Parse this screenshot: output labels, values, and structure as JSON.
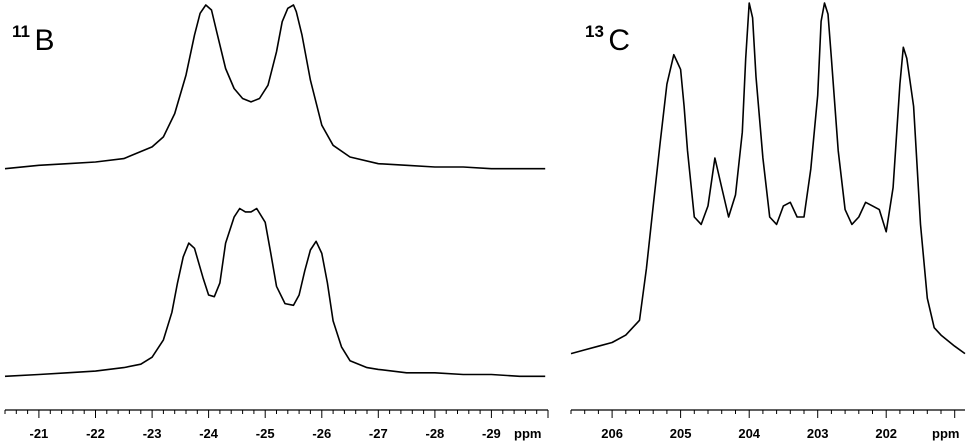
{
  "chart_data": [
    {
      "type": "line",
      "panel": "left",
      "nucleus": {
        "mass": "11",
        "element": "B"
      },
      "xlabel": "ppm",
      "xlim": [
        -20.4,
        -30.0
      ],
      "ticks": [
        "-21",
        "-22",
        "-23",
        "-24",
        "-25",
        "-26",
        "-27",
        "-28",
        "-29"
      ],
      "grid": false,
      "legend": "none",
      "series": [
        {
          "x": [
            -20.4,
            -21.0,
            -21.5,
            -22.0,
            -22.5,
            -23.0,
            -23.2,
            -23.4,
            -23.6,
            -23.75,
            -23.85,
            -23.95,
            -24.05,
            -24.15,
            -24.3,
            -24.45,
            -24.6,
            -24.75,
            -24.9,
            -25.05,
            -25.2,
            -25.3,
            -25.4,
            -25.5,
            -25.55,
            -25.65,
            -25.8,
            -26.0,
            -26.2,
            -26.5,
            -27.0,
            -27.5,
            -28.0,
            -28.5,
            -29.0,
            -29.5,
            -29.95
          ],
          "y": [
            0.02,
            0.04,
            0.05,
            0.06,
            0.08,
            0.15,
            0.21,
            0.35,
            0.58,
            0.82,
            0.95,
            1.0,
            0.97,
            0.83,
            0.62,
            0.5,
            0.44,
            0.42,
            0.44,
            0.52,
            0.72,
            0.9,
            0.98,
            1.0,
            0.96,
            0.82,
            0.55,
            0.28,
            0.16,
            0.09,
            0.05,
            0.04,
            0.03,
            0.03,
            0.02,
            0.02,
            0.02
          ]
        },
        {
          "x": [
            -20.4,
            -21.0,
            -21.5,
            -22.0,
            -22.5,
            -22.8,
            -23.0,
            -23.2,
            -23.35,
            -23.45,
            -23.55,
            -23.65,
            -23.75,
            -23.9,
            -24.0,
            -24.1,
            -24.2,
            -24.3,
            -24.45,
            -24.55,
            -24.65,
            -24.75,
            -24.85,
            -25.0,
            -25.1,
            -25.2,
            -25.35,
            -25.5,
            -25.6,
            -25.7,
            -25.8,
            -25.9,
            -26.0,
            -26.1,
            -26.2,
            -26.35,
            -26.5,
            -26.8,
            -27.0,
            -27.5,
            -28.0,
            -28.5,
            -29.0,
            -29.5,
            -29.95
          ],
          "y": [
            0.01,
            0.02,
            0.03,
            0.04,
            0.06,
            0.08,
            0.12,
            0.22,
            0.38,
            0.55,
            0.7,
            0.78,
            0.75,
            0.58,
            0.48,
            0.47,
            0.55,
            0.78,
            0.93,
            0.98,
            0.96,
            0.96,
            0.98,
            0.9,
            0.72,
            0.53,
            0.43,
            0.42,
            0.48,
            0.62,
            0.74,
            0.79,
            0.72,
            0.55,
            0.33,
            0.18,
            0.1,
            0.06,
            0.05,
            0.03,
            0.03,
            0.02,
            0.02,
            0.01,
            0.01
          ]
        }
      ]
    },
    {
      "type": "line",
      "panel": "right",
      "nucleus": {
        "mass": "13",
        "element": "C"
      },
      "xlabel": "ppm",
      "xlim": [
        206.6,
        200.85
      ],
      "ticks": [
        "206",
        "205",
        "204",
        "203",
        "202"
      ],
      "grid": false,
      "legend": "none",
      "series": [
        {
          "x": [
            206.6,
            206.4,
            206.2,
            206.0,
            205.8,
            205.6,
            205.5,
            205.4,
            205.3,
            205.2,
            205.1,
            205.05,
            205.0,
            204.95,
            204.9,
            204.8,
            204.7,
            204.6,
            204.5,
            204.4,
            204.3,
            204.2,
            204.1,
            204.05,
            204.0,
            203.95,
            203.9,
            203.8,
            203.7,
            203.6,
            203.5,
            203.4,
            203.3,
            203.2,
            203.1,
            203.0,
            202.95,
            202.9,
            202.85,
            202.8,
            202.7,
            202.6,
            202.5,
            202.4,
            202.3,
            202.2,
            202.1,
            202.0,
            201.9,
            201.8,
            201.75,
            201.7,
            201.6,
            201.5,
            201.4,
            201.3,
            201.2,
            201.0,
            200.85
          ],
          "y": [
            0.05,
            0.06,
            0.07,
            0.08,
            0.1,
            0.14,
            0.28,
            0.45,
            0.62,
            0.78,
            0.86,
            0.84,
            0.82,
            0.72,
            0.6,
            0.42,
            0.4,
            0.45,
            0.58,
            0.5,
            0.42,
            0.48,
            0.65,
            0.85,
            1.0,
            0.96,
            0.8,
            0.58,
            0.42,
            0.4,
            0.45,
            0.46,
            0.42,
            0.42,
            0.55,
            0.75,
            0.95,
            1.0,
            0.97,
            0.85,
            0.6,
            0.44,
            0.4,
            0.42,
            0.46,
            0.45,
            0.44,
            0.38,
            0.5,
            0.78,
            0.88,
            0.85,
            0.72,
            0.4,
            0.2,
            0.12,
            0.1,
            0.07,
            0.05
          ]
        }
      ]
    }
  ]
}
